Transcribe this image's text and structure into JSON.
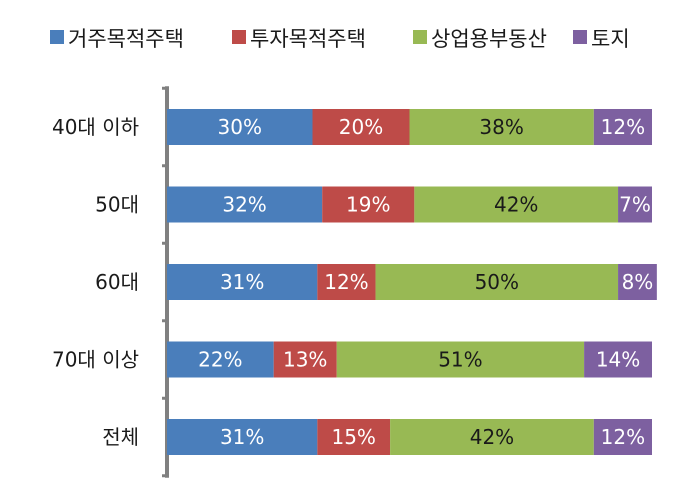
{
  "chart_data": {
    "type": "bar",
    "orientation": "horizontal",
    "stacked": true,
    "percent": true,
    "categories": [
      "40대 이하",
      "50대",
      "60대",
      "70대 이상",
      "전체"
    ],
    "series": [
      {
        "name": "거주목적주택",
        "color": "#4a7ebb",
        "values": [
          30,
          32,
          31,
          22,
          31
        ],
        "labels": [
          "30%",
          "32%",
          "31%",
          "22%",
          "31%"
        ],
        "label_color": "#ffffff"
      },
      {
        "name": "투자목적주택",
        "color": "#be4b48",
        "values": [
          20,
          19,
          12,
          13,
          15
        ],
        "labels": [
          "20%",
          "19%",
          "12%",
          "13%",
          "15%"
        ],
        "label_color": "#ffffff"
      },
      {
        "name": "상업용부동산",
        "color": "#98b954",
        "values": [
          38,
          42,
          50,
          51,
          42
        ],
        "labels": [
          "38%",
          "42%",
          "50%",
          "51%",
          "42%"
        ],
        "label_color": "#1a1a1a"
      },
      {
        "name": "토지",
        "color": "#7d60a0",
        "values": [
          12,
          7,
          8,
          14,
          12
        ],
        "labels": [
          "12%",
          "7%",
          "8%",
          "14%",
          "12%"
        ],
        "label_color": "#ffffff"
      }
    ],
    "xlim": [
      0,
      100
    ],
    "legend_position": "top",
    "grid": false
  }
}
